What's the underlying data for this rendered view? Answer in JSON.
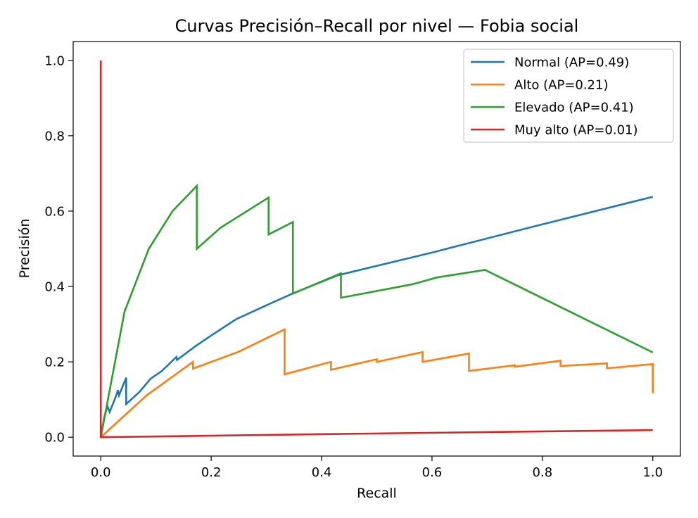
{
  "chart_data": {
    "type": "line",
    "title": "Curvas Precisión–Recall por nivel — Fobia social",
    "xlabel": "Recall",
    "ylabel": "Precisión",
    "xlim": [
      -0.05,
      1.05
    ],
    "ylim": [
      -0.05,
      1.05
    ],
    "xticks": [
      "0.0",
      "0.2",
      "0.4",
      "0.6",
      "0.8",
      "1.0"
    ],
    "yticks": [
      "0.0",
      "0.2",
      "0.4",
      "0.6",
      "0.8",
      "1.0"
    ],
    "grid": false,
    "legend_position": "top-right",
    "series": [
      {
        "name": "Normal (AP=0.49)",
        "color": "#1f77b4",
        "points": [
          [
            0.0,
            0.0
          ],
          [
            0.006,
            0.05
          ],
          [
            0.012,
            0.083
          ],
          [
            0.016,
            0.067
          ],
          [
            0.021,
            0.085
          ],
          [
            0.029,
            0.115
          ],
          [
            0.031,
            0.125
          ],
          [
            0.033,
            0.111
          ],
          [
            0.046,
            0.158
          ],
          [
            0.046,
            0.088
          ],
          [
            0.07,
            0.12
          ],
          [
            0.09,
            0.155
          ],
          [
            0.11,
            0.175
          ],
          [
            0.137,
            0.213
          ],
          [
            0.138,
            0.205
          ],
          [
            0.17,
            0.24
          ],
          [
            0.2,
            0.27
          ],
          [
            0.245,
            0.313
          ],
          [
            0.3,
            0.35
          ],
          [
            0.35,
            0.383
          ],
          [
            0.43,
            0.43
          ],
          [
            0.6,
            0.49
          ],
          [
            0.8,
            0.565
          ],
          [
            1.0,
            0.638
          ]
        ]
      },
      {
        "name": "Alto (AP=0.21)",
        "color": "#ff7f0e",
        "points": [
          [
            0.0,
            0.0
          ],
          [
            0.083,
            0.111
          ],
          [
            0.167,
            0.2
          ],
          [
            0.167,
            0.182
          ],
          [
            0.25,
            0.227
          ],
          [
            0.333,
            0.286
          ],
          [
            0.333,
            0.167
          ],
          [
            0.417,
            0.2
          ],
          [
            0.417,
            0.179
          ],
          [
            0.5,
            0.207
          ],
          [
            0.5,
            0.2
          ],
          [
            0.583,
            0.226
          ],
          [
            0.583,
            0.2
          ],
          [
            0.667,
            0.222
          ],
          [
            0.667,
            0.176
          ],
          [
            0.75,
            0.191
          ],
          [
            0.75,
            0.187
          ],
          [
            0.833,
            0.203
          ],
          [
            0.833,
            0.189
          ],
          [
            0.917,
            0.196
          ],
          [
            0.917,
            0.183
          ],
          [
            1.0,
            0.194
          ],
          [
            1.0,
            0.117
          ]
        ]
      },
      {
        "name": "Elevado (AP=0.41)",
        "color": "#2ca02c",
        "points": [
          [
            0.0,
            0.0
          ],
          [
            0.043,
            0.333
          ],
          [
            0.087,
            0.5
          ],
          [
            0.13,
            0.6
          ],
          [
            0.174,
            0.667
          ],
          [
            0.174,
            0.5
          ],
          [
            0.217,
            0.556
          ],
          [
            0.304,
            0.636
          ],
          [
            0.304,
            0.538
          ],
          [
            0.348,
            0.571
          ],
          [
            0.348,
            0.381
          ],
          [
            0.435,
            0.435
          ],
          [
            0.435,
            0.37
          ],
          [
            0.565,
            0.406
          ],
          [
            0.609,
            0.424
          ],
          [
            0.696,
            0.444
          ],
          [
            1.0,
            0.225
          ]
        ]
      },
      {
        "name": "Muy alto (AP=0.01)",
        "color": "#d62728",
        "points": [
          [
            0.0,
            1.0
          ],
          [
            0.0,
            0.0
          ],
          [
            0.5,
            0.01
          ],
          [
            1.0,
            0.019
          ]
        ]
      }
    ]
  }
}
